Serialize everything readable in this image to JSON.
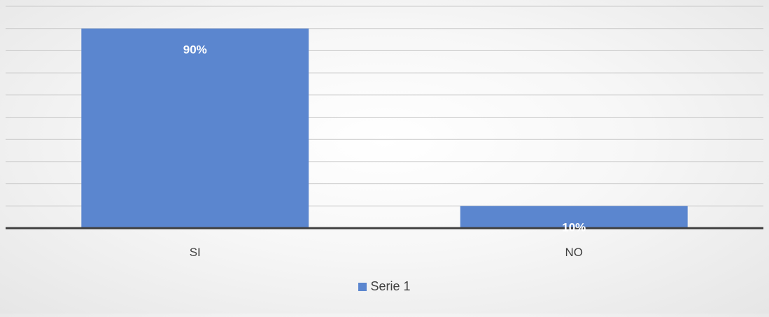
{
  "chart_data": {
    "type": "bar",
    "categories": [
      "SI",
      "NO"
    ],
    "series": [
      {
        "name": "Serie 1",
        "values": [
          0.9,
          0.1
        ],
        "labels": [
          "90%",
          "10%"
        ]
      }
    ],
    "ylim": [
      0,
      1.0
    ],
    "grid": true,
    "legend_position": "bottom",
    "colors": {
      "bar": "#5b86cf",
      "grid": "#c8c8c8",
      "axis": "#404040",
      "label_inside": "#ffffff",
      "tick_label": "#404040"
    }
  }
}
